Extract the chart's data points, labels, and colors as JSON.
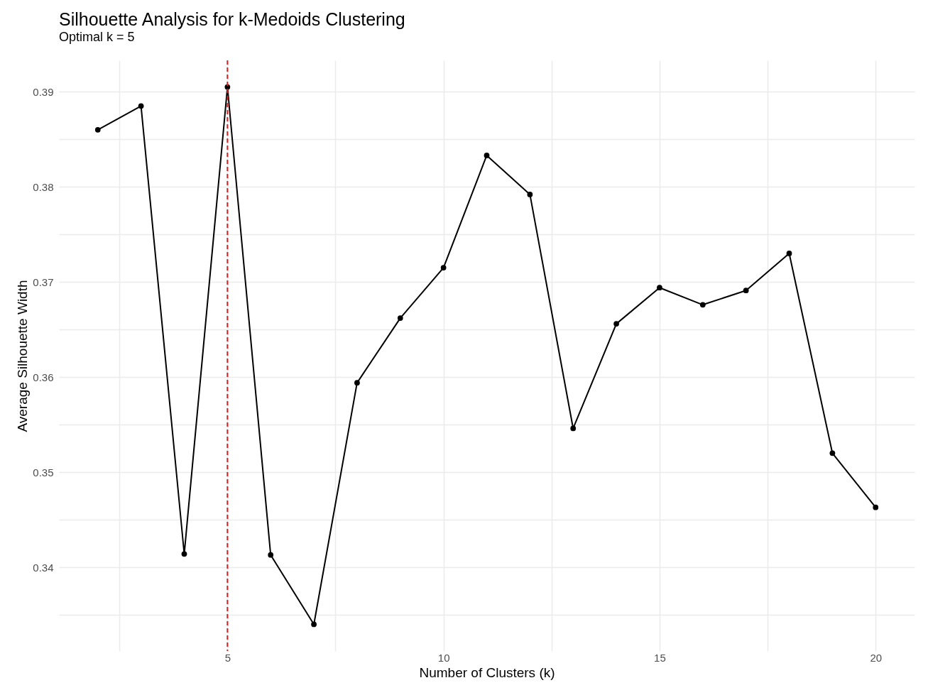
{
  "chart_data": {
    "type": "line",
    "title": "Silhouette Analysis for k-Medoids Clustering",
    "subtitle": "Optimal k = 5",
    "xlabel": "Number of Clusters (k)",
    "ylabel": "Average Silhouette Width",
    "x": [
      2,
      3,
      4,
      5,
      6,
      7,
      8,
      9,
      10,
      11,
      12,
      13,
      14,
      15,
      16,
      17,
      18,
      19,
      20
    ],
    "series": [
      {
        "color": "#000000",
        "values": [
          0.386,
          0.3885,
          0.3414,
          0.3905,
          0.3413,
          0.334,
          0.3594,
          0.3662,
          0.3715,
          0.3833,
          0.3792,
          0.3546,
          0.3656,
          0.3694,
          0.3676,
          0.3691,
          0.373,
          0.352,
          0.3463
        ]
      }
    ],
    "xlim": [
      1.1,
      20.9
    ],
    "ylim": [
      0.3312,
      0.3933
    ],
    "xticks": [
      {
        "value": 2.5,
        "label": null
      },
      5,
      {
        "value": 7.5,
        "label": null
      },
      10,
      {
        "value": 12.5,
        "label": null
      },
      15,
      {
        "value": 17.5,
        "label": null
      },
      20
    ],
    "yticks": [
      {
        "value": 0.335,
        "label": null
      },
      0.34,
      {
        "value": 0.345,
        "label": null
      },
      0.35,
      {
        "value": 0.355,
        "label": null
      },
      0.36,
      {
        "value": 0.365,
        "label": null
      },
      0.37,
      {
        "value": 0.375,
        "label": null
      },
      0.38,
      {
        "value": 0.385,
        "label": null
      },
      0.39
    ],
    "ref_lines": [
      {
        "axis": "x",
        "value": 5,
        "color": "#e41a1c",
        "line_style": "dashed"
      }
    ],
    "grid": true,
    "marker": "circle",
    "line_style": "solid"
  }
}
